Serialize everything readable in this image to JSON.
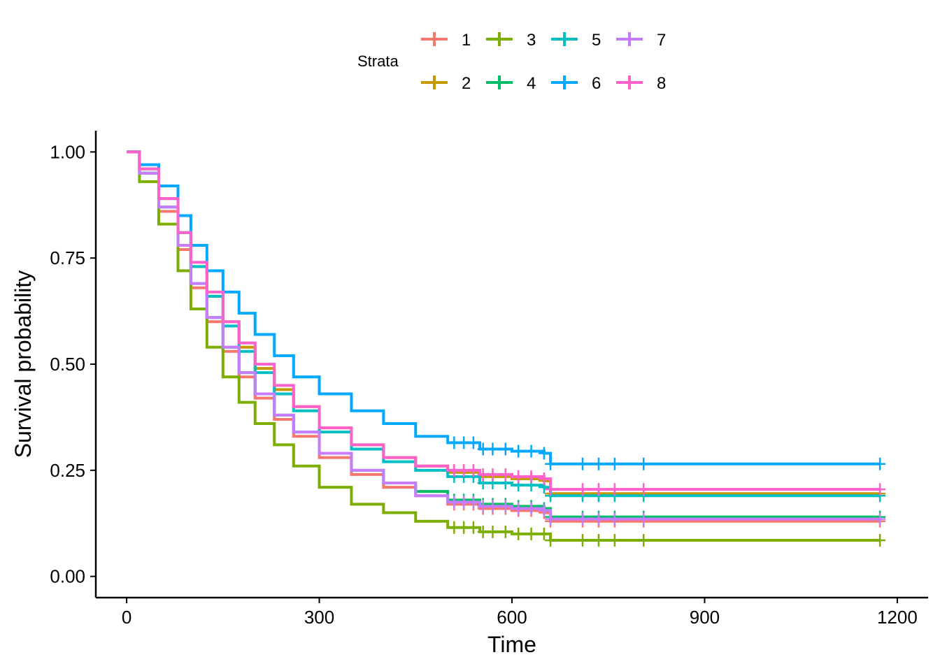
{
  "chart_data": {
    "type": "line",
    "subtype": "kaplan-meier step",
    "xlabel": "Time",
    "ylabel": "Survival probability",
    "xlim": [
      -48,
      1248
    ],
    "ylim": [
      -0.05,
      1.05
    ],
    "x_ticks": [
      0,
      300,
      600,
      900,
      1200
    ],
    "x_tick_labels": [
      "0",
      "300",
      "600",
      "900",
      "1200"
    ],
    "y_ticks": [
      0,
      0.25,
      0.5,
      0.75,
      1
    ],
    "y_tick_labels": [
      "0.00",
      "0.25",
      "0.50",
      "0.75",
      "1.00"
    ],
    "grid": false,
    "legend": {
      "title": "Strata",
      "position": "top"
    },
    "x_end": 1173,
    "series": [
      {
        "name": "1",
        "color": "#F8766D",
        "points": [
          [
            0,
            1
          ],
          [
            20,
            0.95
          ],
          [
            50,
            0.86
          ],
          [
            80,
            0.77
          ],
          [
            100,
            0.68
          ],
          [
            125,
            0.6
          ],
          [
            150,
            0.53
          ],
          [
            175,
            0.47
          ],
          [
            200,
            0.42
          ],
          [
            230,
            0.37
          ],
          [
            260,
            0.33
          ],
          [
            300,
            0.28
          ],
          [
            350,
            0.24
          ],
          [
            400,
            0.21
          ],
          [
            450,
            0.19
          ],
          [
            500,
            0.17
          ],
          [
            550,
            0.16
          ],
          [
            600,
            0.155
          ],
          [
            650,
            0.15
          ],
          [
            660,
            0.13
          ]
        ],
        "censor_x": [
          510,
          525,
          540,
          555,
          570,
          590,
          610,
          630,
          650,
          660,
          710,
          735,
          760,
          805,
          1173
        ]
      },
      {
        "name": "2",
        "color": "#C49A00",
        "points": [
          [
            0,
            1
          ],
          [
            20,
            0.96
          ],
          [
            50,
            0.89
          ],
          [
            80,
            0.81
          ],
          [
            100,
            0.73
          ],
          [
            125,
            0.66
          ],
          [
            150,
            0.6
          ],
          [
            175,
            0.54
          ],
          [
            200,
            0.49
          ],
          [
            230,
            0.44
          ],
          [
            260,
            0.4
          ],
          [
            300,
            0.35
          ],
          [
            350,
            0.31
          ],
          [
            400,
            0.28
          ],
          [
            450,
            0.26
          ],
          [
            500,
            0.245
          ],
          [
            550,
            0.235
          ],
          [
            600,
            0.23
          ],
          [
            650,
            0.225
          ],
          [
            660,
            0.195
          ]
        ],
        "censor_x": [
          510,
          525,
          540,
          555,
          570,
          590,
          610,
          630,
          650,
          660,
          710,
          735,
          760,
          805,
          1173
        ]
      },
      {
        "name": "3",
        "color": "#7CAE00",
        "points": [
          [
            0,
            1
          ],
          [
            20,
            0.93
          ],
          [
            50,
            0.83
          ],
          [
            80,
            0.72
          ],
          [
            100,
            0.63
          ],
          [
            125,
            0.54
          ],
          [
            150,
            0.47
          ],
          [
            175,
            0.41
          ],
          [
            200,
            0.36
          ],
          [
            230,
            0.31
          ],
          [
            260,
            0.26
          ],
          [
            300,
            0.21
          ],
          [
            350,
            0.17
          ],
          [
            400,
            0.15
          ],
          [
            450,
            0.13
          ],
          [
            500,
            0.115
          ],
          [
            550,
            0.105
          ],
          [
            600,
            0.1
          ],
          [
            650,
            0.1
          ],
          [
            660,
            0.085
          ]
        ],
        "censor_x": [
          510,
          525,
          540,
          555,
          570,
          590,
          610,
          630,
          650,
          660,
          710,
          735,
          760,
          805,
          1173
        ]
      },
      {
        "name": "4",
        "color": "#00BE67",
        "points": [
          [
            0,
            1
          ],
          [
            20,
            0.95
          ],
          [
            50,
            0.87
          ],
          [
            80,
            0.78
          ],
          [
            100,
            0.69
          ],
          [
            125,
            0.61
          ],
          [
            150,
            0.54
          ],
          [
            175,
            0.48
          ],
          [
            200,
            0.43
          ],
          [
            230,
            0.38
          ],
          [
            260,
            0.34
          ],
          [
            300,
            0.29
          ],
          [
            350,
            0.25
          ],
          [
            400,
            0.22
          ],
          [
            450,
            0.2
          ],
          [
            500,
            0.18
          ],
          [
            550,
            0.17
          ],
          [
            600,
            0.165
          ],
          [
            650,
            0.16
          ],
          [
            660,
            0.14
          ]
        ],
        "censor_x": [
          510,
          525,
          540,
          555,
          570,
          590,
          610,
          630,
          650,
          660,
          710,
          735,
          760,
          805,
          1173
        ]
      },
      {
        "name": "5",
        "color": "#00BFC4",
        "points": [
          [
            0,
            1
          ],
          [
            20,
            0.96
          ],
          [
            50,
            0.89
          ],
          [
            80,
            0.81
          ],
          [
            100,
            0.73
          ],
          [
            125,
            0.66
          ],
          [
            150,
            0.59
          ],
          [
            175,
            0.53
          ],
          [
            200,
            0.48
          ],
          [
            230,
            0.43
          ],
          [
            260,
            0.39
          ],
          [
            300,
            0.34
          ],
          [
            350,
            0.3
          ],
          [
            400,
            0.27
          ],
          [
            450,
            0.25
          ],
          [
            500,
            0.235
          ],
          [
            550,
            0.22
          ],
          [
            600,
            0.215
          ],
          [
            650,
            0.21
          ],
          [
            660,
            0.19
          ]
        ],
        "censor_x": [
          510,
          525,
          540,
          555,
          570,
          590,
          610,
          630,
          650,
          660,
          710,
          735,
          760,
          805,
          1173
        ]
      },
      {
        "name": "6",
        "color": "#00A9FF",
        "points": [
          [
            0,
            1
          ],
          [
            20,
            0.97
          ],
          [
            50,
            0.92
          ],
          [
            80,
            0.85
          ],
          [
            100,
            0.78
          ],
          [
            125,
            0.72
          ],
          [
            150,
            0.67
          ],
          [
            175,
            0.62
          ],
          [
            200,
            0.57
          ],
          [
            230,
            0.52
          ],
          [
            260,
            0.47
          ],
          [
            300,
            0.43
          ],
          [
            350,
            0.39
          ],
          [
            400,
            0.36
          ],
          [
            450,
            0.33
          ],
          [
            500,
            0.315
          ],
          [
            550,
            0.3
          ],
          [
            600,
            0.295
          ],
          [
            650,
            0.29
          ],
          [
            660,
            0.265
          ]
        ],
        "censor_x": [
          510,
          525,
          540,
          555,
          570,
          590,
          610,
          630,
          650,
          660,
          710,
          735,
          760,
          805,
          1173
        ]
      },
      {
        "name": "7",
        "color": "#C77CFF",
        "points": [
          [
            0,
            1
          ],
          [
            20,
            0.95
          ],
          [
            50,
            0.87
          ],
          [
            80,
            0.78
          ],
          [
            100,
            0.69
          ],
          [
            125,
            0.61
          ],
          [
            150,
            0.54
          ],
          [
            175,
            0.48
          ],
          [
            200,
            0.43
          ],
          [
            230,
            0.38
          ],
          [
            260,
            0.34
          ],
          [
            300,
            0.29
          ],
          [
            350,
            0.25
          ],
          [
            400,
            0.22
          ],
          [
            450,
            0.19
          ],
          [
            500,
            0.175
          ],
          [
            550,
            0.165
          ],
          [
            600,
            0.16
          ],
          [
            650,
            0.155
          ],
          [
            660,
            0.135
          ]
        ],
        "censor_x": [
          510,
          525,
          540,
          555,
          570,
          590,
          610,
          630,
          650,
          660,
          710,
          735,
          760,
          805,
          1173
        ]
      },
      {
        "name": "8",
        "color": "#FF61CC",
        "points": [
          [
            0,
            1
          ],
          [
            20,
            0.96
          ],
          [
            50,
            0.89
          ],
          [
            80,
            0.81
          ],
          [
            100,
            0.74
          ],
          [
            125,
            0.67
          ],
          [
            150,
            0.6
          ],
          [
            175,
            0.55
          ],
          [
            200,
            0.5
          ],
          [
            230,
            0.45
          ],
          [
            260,
            0.4
          ],
          [
            300,
            0.35
          ],
          [
            350,
            0.31
          ],
          [
            400,
            0.28
          ],
          [
            450,
            0.26
          ],
          [
            500,
            0.25
          ],
          [
            550,
            0.24
          ],
          [
            600,
            0.235
          ],
          [
            650,
            0.23
          ],
          [
            660,
            0.205
          ]
        ],
        "censor_x": [
          510,
          525,
          540,
          555,
          570,
          590,
          610,
          630,
          650,
          660,
          710,
          735,
          760,
          805,
          1173
        ]
      }
    ]
  }
}
